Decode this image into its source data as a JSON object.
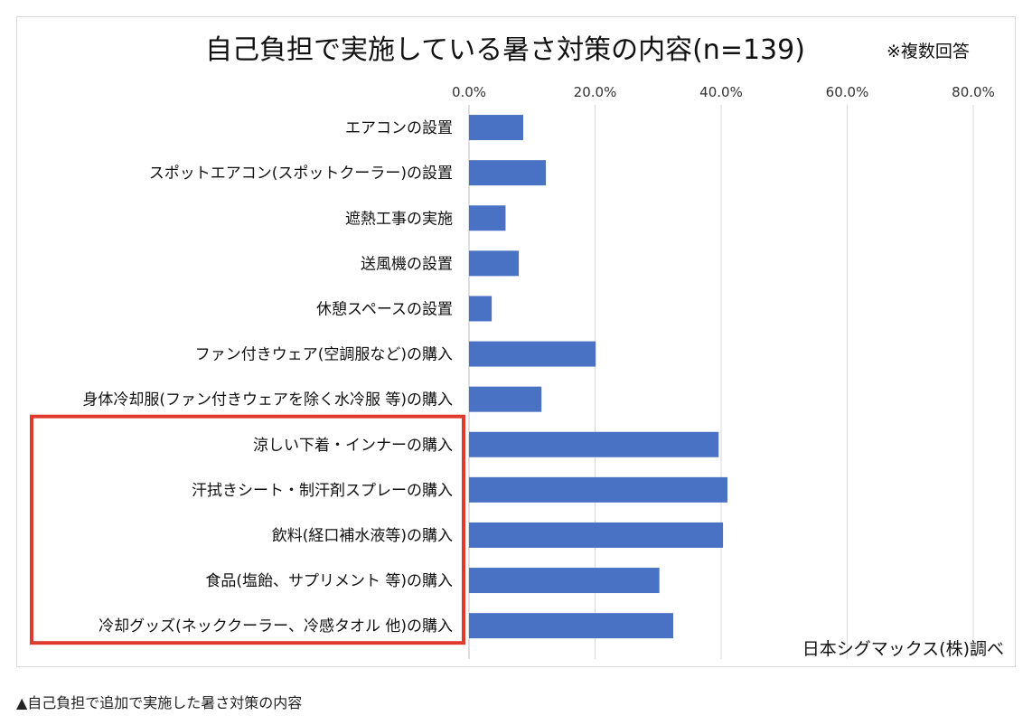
{
  "chart_data": {
    "type": "bar",
    "orientation": "horizontal",
    "title": "自己負担で実施している暑さ対策の内容(n=139)",
    "note": "※複数回答",
    "source": "日本シグマックス(株)調べ",
    "xlim": [
      0,
      80
    ],
    "ticks": [
      "0.0%",
      "20.0%",
      "40.0%",
      "60.0%",
      "80.0%"
    ],
    "tick_values": [
      0,
      20,
      40,
      60,
      80
    ],
    "grid": true,
    "bar_color": "#4a72c4",
    "highlight_color": "#e03a2f",
    "highlight_start_index": 7,
    "categories": [
      "エアコンの設置",
      "スポットエアコン(スポットクーラー)の設置",
      "遮熱工事の実施",
      "送風機の設置",
      "休憩スペースの設置",
      "ファン付きウェア(空調服など)の購入",
      "身体冷却服(ファン付きウェアを除く水冷服 等)の購入",
      "涼しい下着・インナーの購入",
      "汗拭きシート・制汗剤スプレーの購入",
      "飲料(経口補水液等)の購入",
      "食品(塩飴、サプリメント 等)の購入",
      "冷却グッズ(ネッククーラー、冷感タオル 他)の購入"
    ],
    "values": [
      8.6,
      12.2,
      5.8,
      7.9,
      3.6,
      20.1,
      11.5,
      39.6,
      41.0,
      40.3,
      30.2,
      32.4
    ]
  },
  "caption": "▲自己負担で追加で実施した暑さ対策の内容"
}
